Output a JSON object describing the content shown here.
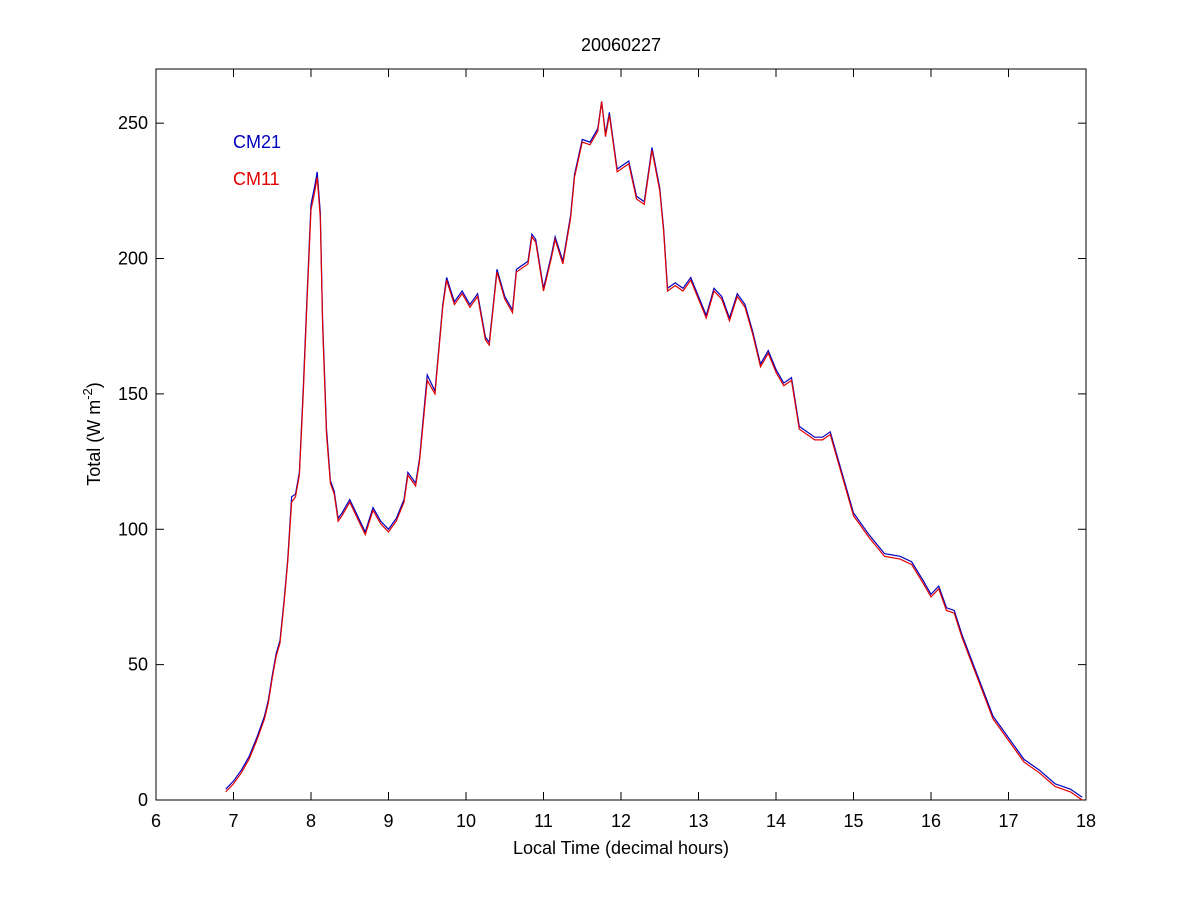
{
  "chart_data": {
    "type": "line",
    "title": "20060227",
    "xlabel": "Local Time (decimal hours)",
    "ylabel": [
      "Total (W m",
      "-2",
      ")"
    ],
    "xlim": [
      6,
      18
    ],
    "xticks": [
      6,
      7,
      8,
      9,
      10,
      11,
      12,
      13,
      14,
      15,
      16,
      17,
      18
    ],
    "ylim": [
      0,
      270
    ],
    "yticks": [
      0,
      50,
      100,
      150,
      200,
      250
    ],
    "legend": "upper left",
    "grid": false,
    "x": [
      6.9,
      7.0,
      7.1,
      7.2,
      7.3,
      7.4,
      7.45,
      7.5,
      7.55,
      7.6,
      7.65,
      7.7,
      7.75,
      7.8,
      7.85,
      7.9,
      7.95,
      8.0,
      8.05,
      8.08,
      8.12,
      8.15,
      8.2,
      8.25,
      8.3,
      8.35,
      8.4,
      8.5,
      8.6,
      8.7,
      8.8,
      8.9,
      9.0,
      9.1,
      9.2,
      9.25,
      9.35,
      9.4,
      9.5,
      9.6,
      9.7,
      9.75,
      9.85,
      9.95,
      10.05,
      10.15,
      10.25,
      10.3,
      10.4,
      10.5,
      10.6,
      10.65,
      10.8,
      10.85,
      10.9,
      11.0,
      11.1,
      11.15,
      11.25,
      11.35,
      11.4,
      11.5,
      11.6,
      11.7,
      11.75,
      11.8,
      11.85,
      11.95,
      12.1,
      12.2,
      12.3,
      12.4,
      12.5,
      12.55,
      12.6,
      12.7,
      12.8,
      12.9,
      13.0,
      13.1,
      13.2,
      13.3,
      13.4,
      13.5,
      13.6,
      13.7,
      13.8,
      13.9,
      14.0,
      14.1,
      14.2,
      14.3,
      14.5,
      14.6,
      14.7,
      14.8,
      15.0,
      15.2,
      15.4,
      15.6,
      15.75,
      15.9,
      16.0,
      16.1,
      16.2,
      16.3,
      16.4,
      16.6,
      16.8,
      17.0,
      17.2,
      17.4,
      17.6,
      17.8,
      17.95
    ],
    "series": [
      {
        "name": "CM21",
        "color": "#0000c0",
        "values": [
          4,
          7,
          11,
          16,
          23,
          31,
          37,
          46,
          54,
          59,
          73,
          89,
          112,
          113,
          121,
          152,
          187,
          220,
          227,
          232,
          217,
          177,
          137,
          118,
          114,
          104,
          106,
          111,
          105,
          99,
          108,
          103,
          100,
          104,
          111,
          121,
          117,
          126,
          157,
          151,
          183,
          193,
          184,
          188,
          183,
          187,
          171,
          169,
          196,
          186,
          181,
          196,
          199,
          209,
          207,
          189,
          201,
          208,
          199,
          216,
          231,
          244,
          243,
          248,
          258,
          246,
          254,
          233,
          236,
          223,
          221,
          241,
          226,
          211,
          189,
          191,
          189,
          193,
          186,
          179,
          189,
          186,
          178,
          187,
          183,
          173,
          161,
          166,
          159,
          154,
          156,
          138,
          134,
          134,
          136,
          126,
          106,
          98,
          91,
          90,
          88,
          81,
          76,
          79,
          71,
          70,
          61,
          46,
          31,
          23,
          15,
          11,
          6,
          4,
          1
        ]
      },
      {
        "name": "CM11",
        "color": "#e00000",
        "values": [
          3,
          6,
          10,
          15,
          22,
          30,
          36,
          45,
          53,
          58,
          72,
          88,
          110,
          112,
          120,
          150,
          185,
          218,
          225,
          230,
          215,
          175,
          135,
          117,
          113,
          103,
          105,
          110,
          104,
          98,
          107,
          102,
          99,
          103,
          110,
          120,
          116,
          125,
          155,
          150,
          182,
          192,
          183,
          187,
          182,
          186,
          170,
          168,
          195,
          185,
          180,
          195,
          198,
          208,
          206,
          188,
          200,
          207,
          198,
          215,
          230,
          243,
          242,
          247,
          258,
          245,
          253,
          232,
          235,
          222,
          220,
          240,
          225,
          210,
          188,
          190,
          188,
          192,
          185,
          178,
          188,
          185,
          177,
          186,
          182,
          172,
          160,
          165,
          158,
          153,
          155,
          137,
          133,
          133,
          135,
          125,
          105,
          97,
          90,
          89,
          87,
          80,
          75,
          78,
          70,
          69,
          60,
          45,
          30,
          22,
          14,
          10,
          5,
          3,
          0
        ]
      }
    ]
  }
}
